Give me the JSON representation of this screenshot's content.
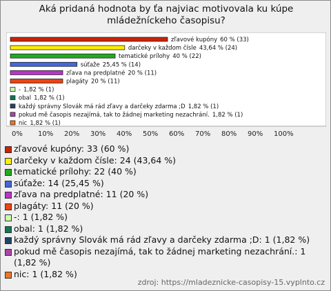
{
  "chart_data": {
    "type": "bar",
    "orientation": "horizontal",
    "title": "Aká pridaná hodnota by ťa najviac motivovala ku kúpe mládežníckeho časopisu?",
    "categories": [
      "zľavové kupóny",
      "darčeky v každom čísle",
      "tematické prílohy",
      "súťaže",
      "zľava na predplatné",
      "plagáty",
      "-",
      "obal",
      "každý správny Slovák má rád zľavy a darčeky zdarma ;D",
      "pokud mě časopis nezajímá, tak to žádnej marketing nezachrání.",
      "nic"
    ],
    "values": [
      60,
      43.64,
      40,
      25.45,
      20,
      20,
      1.82,
      1.82,
      1.82,
      1.82,
      1.82
    ],
    "value_labels": [
      "60 % (33)",
      "43,64 % (24)",
      "40 % (22)",
      "25,45 % (14)",
      "20 % (11)",
      "20 % (11)",
      "1,82 % (1)",
      "1,82 % (1)",
      "1,82 % (1)",
      "1,82 % (1)",
      "1,82 % (1)"
    ],
    "colors": [
      "#cc2200",
      "#ffee00",
      "#22aa22",
      "#4466dd",
      "#bb33cc",
      "#ee4411",
      "#ccffaa",
      "#117755",
      "#224466",
      "#aa44aa",
      "#ee7722"
    ],
    "legend_labels": [
      "zľavové kupóny: 33 (60 %)",
      "darčeky v každom čísle: 24 (43,64 %)",
      "tematické prílohy: 22 (40 %)",
      "súťaže: 14 (25,45 %)",
      "zľava na predplatné: 11 (20 %)",
      "plagáty: 11 (20 %)",
      "-: 1 (1,82 %)",
      "obal: 1 (1,82 %)",
      "každý správny Slovák má rád zľavy a darčeky zdarma ;D: 1 (1,82 %)",
      "pokud mě časopis nezajímá, tak to žádnej marketing nezachrání.: 1 (1,82 %)",
      "nic: 1 (1,82 %)"
    ],
    "xlim": [
      0,
      100
    ],
    "xticks": [
      {
        "value": 0,
        "label": "0%"
      },
      {
        "value": 10,
        "label": "10%"
      },
      {
        "value": 20,
        "label": "20%"
      },
      {
        "value": 30,
        "label": "30%"
      },
      {
        "value": 40,
        "label": "40%"
      },
      {
        "value": 50,
        "label": "50%"
      },
      {
        "value": 60,
        "label": "60%"
      },
      {
        "value": 70,
        "label": "70%"
      },
      {
        "value": 80,
        "label": "80%"
      },
      {
        "value": 90,
        "label": "90%"
      },
      {
        "value": 100,
        "label": "100%"
      }
    ],
    "source": "zdroj: https://mladeznicke-casopisy-15.vyplnto.cz"
  }
}
